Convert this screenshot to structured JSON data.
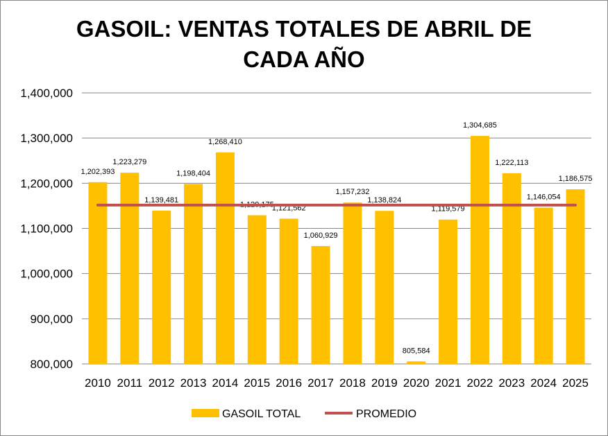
{
  "chart_data": {
    "type": "bar",
    "title_lines": [
      "GASOIL: VENTAS TOTALES DE ABRIL DE",
      "CADA AÑO"
    ],
    "categories": [
      "2010",
      "2011",
      "2012",
      "2013",
      "2014",
      "2015",
      "2016",
      "2017",
      "2018",
      "2019",
      "2020",
      "2021",
      "2022",
      "2023",
      "2024",
      "2025"
    ],
    "series": [
      {
        "name": "GASOIL TOTAL",
        "type": "bar",
        "color": "#FFC000",
        "values": [
          1202393,
          1223279,
          1139481,
          1198404,
          1268410,
          1129175,
          1121562,
          1060929,
          1157232,
          1138824,
          805584,
          1119579,
          1304685,
          1222113,
          1146054,
          1186575
        ],
        "labels": [
          "1,202,393",
          "1,223,279",
          "1,139,481",
          "1,198,404",
          "1,268,410",
          "1,129,175",
          "1,121,562",
          "1,060,929",
          "1,157,232",
          "1,138,824",
          "805,584",
          "1,119,579",
          "1,304,685",
          "1,222,113",
          "1,146,054",
          "1,186,575"
        ]
      },
      {
        "name": "PROMEDIO",
        "type": "line",
        "color": "#C0504D",
        "value": 1151517
      }
    ],
    "ylim": [
      800000,
      1400000
    ],
    "yticks": [
      800000,
      900000,
      1000000,
      1100000,
      1200000,
      1300000,
      1400000
    ],
    "ytick_labels": [
      "800,000",
      "900,000",
      "1,000,000",
      "1,100,000",
      "1,200,000",
      "1,300,000",
      "1,400,000"
    ],
    "grid": true,
    "legend": "bottom"
  }
}
